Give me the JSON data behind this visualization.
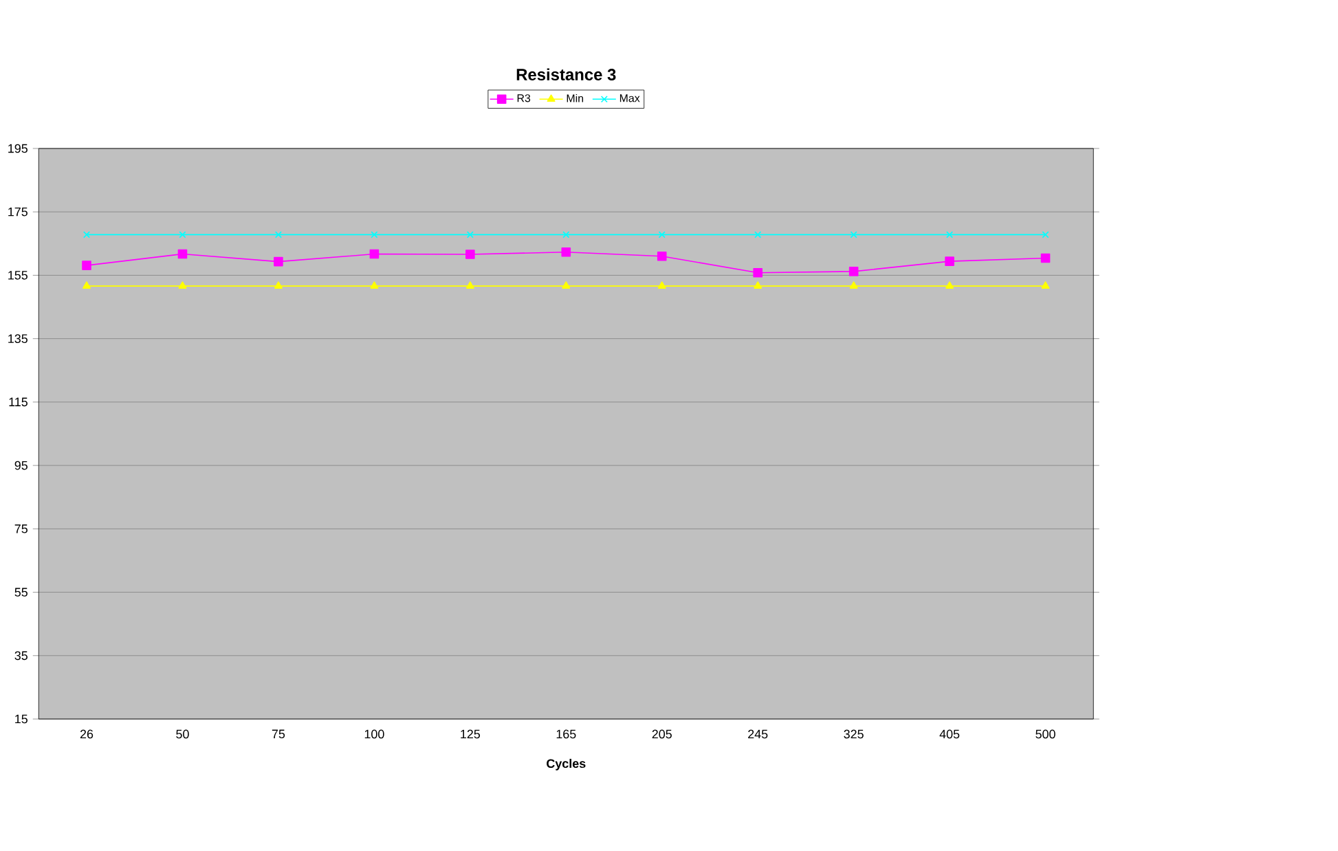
{
  "chart_data": {
    "type": "line",
    "title": "Resistance 3",
    "xlabel": "Cycles",
    "categories": [
      "26",
      "50",
      "75",
      "100",
      "125",
      "165",
      "205",
      "245",
      "325",
      "405",
      "500"
    ],
    "series": [
      {
        "name": "R3",
        "color": "#ff00ff",
        "marker": "square",
        "values": [
          158.1,
          161.7,
          159.3,
          161.7,
          161.6,
          162.3,
          161.0,
          155.8,
          156.2,
          159.4,
          160.4
        ]
      },
      {
        "name": "Min",
        "color": "#ffff00",
        "marker": "triangle",
        "values": [
          151.6,
          151.6,
          151.6,
          151.6,
          151.6,
          151.6,
          151.6,
          151.6,
          151.6,
          151.6,
          151.6
        ]
      },
      {
        "name": "Max",
        "color": "#00ffff",
        "marker": "cross",
        "values": [
          167.8,
          167.8,
          167.8,
          167.8,
          167.8,
          167.8,
          167.8,
          167.8,
          167.8,
          167.8,
          167.8
        ]
      }
    ],
    "ylim": [
      15,
      195
    ],
    "yticks": [
      15,
      35,
      55,
      75,
      95,
      115,
      135,
      155,
      175,
      195
    ],
    "grid": "y",
    "legend": "top",
    "line_style": "solid"
  }
}
